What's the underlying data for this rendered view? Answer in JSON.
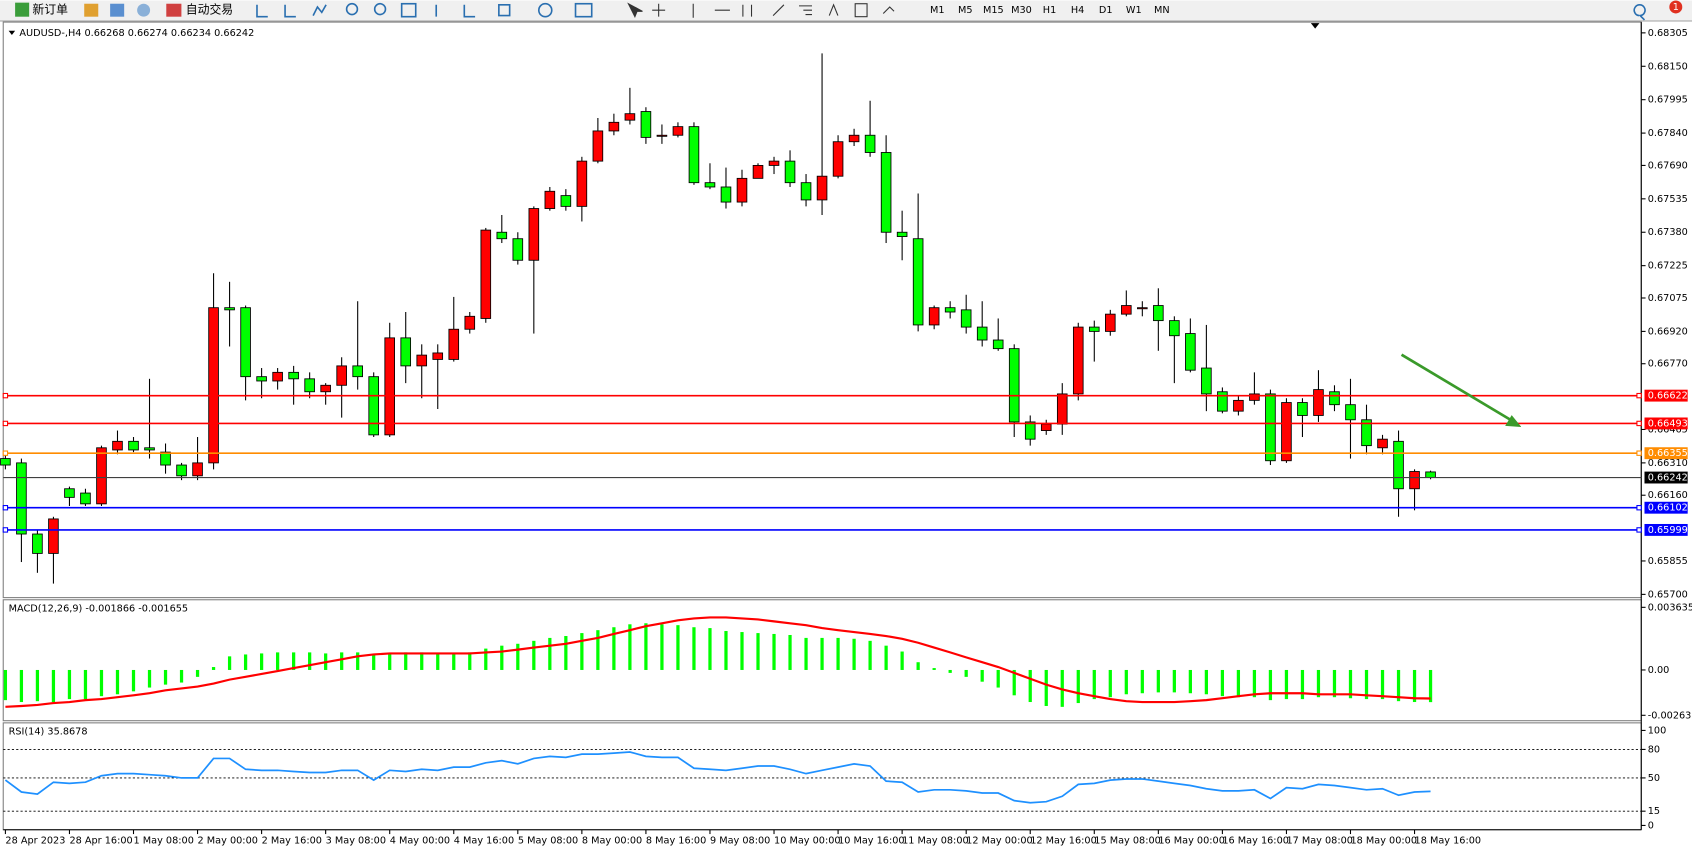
{
  "toolbar": {
    "buttons": [
      "新订单",
      "自动交易"
    ],
    "timeframes": [
      "M1",
      "M5",
      "M15",
      "M30",
      "H1",
      "H4",
      "D1",
      "W1",
      "MN"
    ],
    "badge": "1"
  },
  "chart_data": [
    {
      "type": "candlestick",
      "title": "AUDUSD-,H4 0.66268 0.66274 0.66234 0.66242",
      "categories": [
        "28 Apr 2023",
        null,
        null,
        null,
        "28 Apr 16:00",
        null,
        null,
        null,
        "1 May 08:00",
        null,
        null,
        null,
        "2 May 00:00",
        null,
        null,
        null,
        "2 May 16:00",
        null,
        null,
        null,
        "3 May 08:00",
        null,
        null,
        null,
        "4 May 00:00",
        null,
        null,
        null,
        "4 May 16:00",
        null,
        null,
        null,
        "5 May 08:00",
        null,
        null,
        null,
        "8 May 00:00",
        null,
        null,
        null,
        "8 May 16:00",
        null,
        null,
        null,
        "9 May 08:00",
        null,
        null,
        null,
        "10 May 00:00",
        null,
        null,
        null,
        "10 May 16:00",
        null,
        null,
        null,
        "11 May 08:00",
        null,
        null,
        null,
        "12 May 00:00",
        null,
        null,
        null,
        "12 May 16:00",
        null,
        null,
        null,
        "15 May 08:00",
        null,
        null,
        null,
        "16 May 00:00",
        null,
        null,
        null,
        "16 May 16:00",
        null,
        null,
        null,
        "17 May 08:00",
        null,
        null,
        null,
        "18 May 00:00",
        null,
        null,
        null,
        "18 May 16:00",
        null
      ],
      "open": [
        0.6633,
        0.6631,
        0.6598,
        0.6589,
        0.6619,
        0.6617,
        0.6612,
        0.6637,
        0.6641,
        0.6638,
        0.6636,
        0.663,
        0.6625,
        0.6631,
        0.6703,
        0.6703,
        0.6671,
        0.6669,
        0.6673,
        0.667,
        0.6664,
        0.6667,
        0.6676,
        0.6671,
        0.6644,
        0.6689,
        0.6676,
        0.6679,
        0.6679,
        0.6693,
        0.6698,
        0.6738,
        0.6735,
        0.6725,
        0.6749,
        0.6755,
        0.675,
        0.6771,
        0.6785,
        0.679,
        0.6794,
        0.6783,
        0.6783,
        0.6787,
        0.6761,
        0.6759,
        0.6752,
        0.6763,
        0.6769,
        0.6771,
        0.6761,
        0.6753,
        0.6764,
        0.678,
        0.6783,
        0.6775,
        0.6738,
        0.6735,
        0.6695,
        0.6703,
        0.6702,
        0.6694,
        0.6688,
        0.6684,
        0.665,
        0.6646,
        0.6649,
        0.6663,
        0.6694,
        0.6692,
        0.67,
        0.6703,
        0.6704,
        0.6697,
        0.6691,
        0.6675,
        0.6664,
        0.6655,
        0.666,
        0.6663,
        0.6632,
        0.6659,
        0.6653,
        0.6664,
        0.6658,
        0.6651,
        0.6638,
        0.6641,
        0.6619,
        0.66268
      ],
      "high": [
        0.6635,
        0.6633,
        0.66,
        0.6606,
        0.662,
        0.6619,
        0.6639,
        0.6646,
        0.6643,
        0.667,
        0.664,
        0.6631,
        0.6643,
        0.6719,
        0.6715,
        0.6704,
        0.6675,
        0.6675,
        0.6676,
        0.6673,
        0.6668,
        0.668,
        0.6706,
        0.6673,
        0.6696,
        0.6701,
        0.6686,
        0.6686,
        0.6708,
        0.6701,
        0.674,
        0.6746,
        0.6738,
        0.675,
        0.6759,
        0.6758,
        0.6773,
        0.6791,
        0.6793,
        0.6805,
        0.6796,
        0.6788,
        0.6789,
        0.6789,
        0.677,
        0.6768,
        0.6767,
        0.677,
        0.6773,
        0.6776,
        0.6765,
        0.6821,
        0.6783,
        0.6786,
        0.6799,
        0.6783,
        0.6748,
        0.6756,
        0.6704,
        0.6706,
        0.6709,
        0.6706,
        0.6698,
        0.6686,
        0.6653,
        0.6651,
        0.6668,
        0.6696,
        0.6697,
        0.6702,
        0.6711,
        0.6706,
        0.6712,
        0.6699,
        0.6698,
        0.6695,
        0.6666,
        0.6662,
        0.6673,
        0.6665,
        0.6661,
        0.6661,
        0.6674,
        0.6667,
        0.667,
        0.6658,
        0.6644,
        0.6646,
        0.6628,
        0.66274
      ],
      "low": [
        0.6628,
        0.6585,
        0.658,
        0.6575,
        0.6611,
        0.6611,
        0.6611,
        0.6635,
        0.6636,
        0.6633,
        0.6626,
        0.6623,
        0.6623,
        0.6628,
        0.6685,
        0.666,
        0.6661,
        0.6665,
        0.6658,
        0.6661,
        0.6658,
        0.6652,
        0.6665,
        0.6643,
        0.6643,
        0.6668,
        0.6661,
        0.6656,
        0.6678,
        0.6691,
        0.6696,
        0.6733,
        0.6723,
        0.6691,
        0.6748,
        0.6748,
        0.6743,
        0.677,
        0.6783,
        0.6788,
        0.6779,
        0.6779,
        0.6782,
        0.676,
        0.6758,
        0.6749,
        0.675,
        0.6763,
        0.6765,
        0.6759,
        0.675,
        0.6746,
        0.6763,
        0.6778,
        0.6773,
        0.6733,
        0.6725,
        0.6692,
        0.6693,
        0.6698,
        0.6691,
        0.6685,
        0.6683,
        0.6643,
        0.6639,
        0.6644,
        0.6644,
        0.666,
        0.6678,
        0.669,
        0.6699,
        0.6699,
        0.6683,
        0.6668,
        0.6673,
        0.6655,
        0.6654,
        0.6653,
        0.6658,
        0.663,
        0.6631,
        0.6643,
        0.665,
        0.6655,
        0.6633,
        0.6635,
        0.6635,
        0.6606,
        0.6609,
        0.66234
      ],
      "close": [
        0.663,
        0.6598,
        0.6589,
        0.6605,
        0.6615,
        0.6612,
        0.6638,
        0.6641,
        0.6637,
        0.6637,
        0.663,
        0.6625,
        0.6631,
        0.6703,
        0.6702,
        0.6671,
        0.6669,
        0.6673,
        0.667,
        0.6664,
        0.6667,
        0.6676,
        0.6671,
        0.6644,
        0.6689,
        0.6676,
        0.6681,
        0.6682,
        0.6693,
        0.6699,
        0.6739,
        0.6735,
        0.6725,
        0.6749,
        0.6757,
        0.675,
        0.6771,
        0.6785,
        0.6789,
        0.6793,
        0.6782,
        0.6783,
        0.6787,
        0.6761,
        0.6759,
        0.6752,
        0.6763,
        0.6769,
        0.6771,
        0.6761,
        0.6753,
        0.6764,
        0.678,
        0.6783,
        0.6775,
        0.6738,
        0.6736,
        0.6695,
        0.6703,
        0.6701,
        0.6694,
        0.6688,
        0.6684,
        0.665,
        0.6642,
        0.6649,
        0.6663,
        0.6694,
        0.6692,
        0.67,
        0.6704,
        0.6703,
        0.6697,
        0.669,
        0.6674,
        0.6663,
        0.6655,
        0.666,
        0.6663,
        0.6632,
        0.6659,
        0.6653,
        0.6665,
        0.6658,
        0.6651,
        0.6639,
        0.6642,
        0.6619,
        0.6627,
        0.66242
      ],
      "up_color": "#ff0000",
      "down_color": "#00ff00",
      "ylim": [
        0.65685,
        0.68355
      ],
      "yticks": [
        0.68305,
        {
          "value": 0.6815,
          "label": "0.68150"
        },
        0.67995,
        {
          "value": 0.6784,
          "label": "0.67840"
        },
        {
          "value": 0.6769,
          "label": "0.67690"
        },
        0.67535,
        {
          "value": 0.6738,
          "label": "0.67380"
        },
        0.67225,
        0.67075,
        {
          "value": 0.6692,
          "label": "0.66920"
        },
        {
          "value": 0.6677,
          "label": "0.66770"
        },
        0.66465,
        {
          "value": 0.6631,
          "label": "0.66310"
        },
        {
          "value": 0.6616,
          "label": "0.66160"
        },
        0.65855,
        {
          "value": 0.657,
          "label": "0.65700"
        }
      ],
      "levels": [
        {
          "value": 0.66622,
          "color": "#ff0000"
        },
        {
          "value": 0.66493,
          "color": "#ff0000"
        },
        {
          "value": 0.66355,
          "color": "#ff8c00"
        },
        {
          "value": 0.66242,
          "color": "#000000"
        },
        {
          "value": 0.66102,
          "color": "#0000ff"
        },
        {
          "value": 0.65999,
          "color": "#0000ff"
        }
      ]
    },
    {
      "type": "macd",
      "title": "MACD(12,26,9) -0.001866 -0.001655",
      "histogram": {
        "color": "#00ff00",
        "values": [
          -0.00175,
          -0.00186,
          -0.00181,
          -0.00186,
          -0.00169,
          -0.00169,
          -0.00152,
          -0.00141,
          -0.00124,
          -0.00102,
          -0.00085,
          -0.00073,
          -0.0004,
          0.00017,
          0.00079,
          0.0009,
          0.00096,
          0.00102,
          0.00102,
          0.00102,
          0.00096,
          0.00102,
          0.00102,
          0.0009,
          0.00096,
          0.00102,
          0.00102,
          0.00096,
          0.00096,
          0.00102,
          0.00124,
          0.00141,
          0.00152,
          0.00169,
          0.00186,
          0.00197,
          0.00214,
          0.00231,
          0.00248,
          0.00265,
          0.00271,
          0.00265,
          0.0026,
          0.00248,
          0.00243,
          0.00226,
          0.0022,
          0.00214,
          0.00209,
          0.00203,
          0.00186,
          0.00186,
          0.00186,
          0.00181,
          0.00169,
          0.00141,
          0.00107,
          0.00045,
          0.00011,
          -0.00017,
          -0.0004,
          -0.00068,
          -0.00102,
          -0.00147,
          -0.00186,
          -0.00209,
          -0.00214,
          -0.00192,
          -0.00169,
          -0.00158,
          -0.00141,
          -0.00135,
          -0.0013,
          -0.0013,
          -0.00135,
          -0.00141,
          -0.00152,
          -0.00158,
          -0.00158,
          -0.00175,
          -0.00169,
          -0.00169,
          -0.00158,
          -0.00158,
          -0.00164,
          -0.00169,
          -0.00169,
          -0.00181,
          -0.00186,
          -0.001866
        ]
      },
      "signal": {
        "color": "#ff0000",
        "values": [
          -0.00214,
          -0.00209,
          -0.00203,
          -0.00192,
          -0.00186,
          -0.00175,
          -0.00169,
          -0.00158,
          -0.00147,
          -0.00135,
          -0.00118,
          -0.00107,
          -0.00096,
          -0.00079,
          -0.00056,
          -0.0004,
          -0.00023,
          -6e-05,
          0.00011,
          0.00028,
          0.00045,
          0.00062,
          0.00079,
          0.0009,
          0.00096,
          0.00096,
          0.00096,
          0.00096,
          0.00096,
          0.00096,
          0.00102,
          0.00107,
          0.00118,
          0.0013,
          0.00141,
          0.00152,
          0.00169,
          0.00186,
          0.00209,
          0.00231,
          0.00254,
          0.00271,
          0.00288,
          0.00299,
          0.00305,
          0.00305,
          0.00299,
          0.00293,
          0.00282,
          0.00271,
          0.0026,
          0.00243,
          0.00231,
          0.0022,
          0.00209,
          0.00197,
          0.00181,
          0.00158,
          0.0013,
          0.00102,
          0.00073,
          0.00045,
          0.00017,
          -0.00017,
          -0.00051,
          -0.00085,
          -0.00113,
          -0.00135,
          -0.00152,
          -0.00169,
          -0.00181,
          -0.00186,
          -0.00186,
          -0.00186,
          -0.00181,
          -0.00175,
          -0.00164,
          -0.00152,
          -0.00141,
          -0.00135,
          -0.00135,
          -0.00135,
          -0.00141,
          -0.00141,
          -0.00141,
          -0.00147,
          -0.00152,
          -0.00158,
          -0.00164,
          -0.001655
        ]
      },
      "ylim": [
        -0.00263,
        0.003635
      ],
      "yticks": [
        0.003635,
        {
          "value": 0,
          "label": "0.00"
        },
        -0.00263
      ]
    },
    {
      "type": "line",
      "title": "RSI(14) 35.8678",
      "color": "#1e90ff",
      "values": [
        47.7,
        35.2,
        33.0,
        45.5,
        44.3,
        45.5,
        52.3,
        54.5,
        54.5,
        53.4,
        52.3,
        50.0,
        50.0,
        70.5,
        70.5,
        59.1,
        58.0,
        58.0,
        56.8,
        55.7,
        55.7,
        58.0,
        58.0,
        47.7,
        58.0,
        56.8,
        59.1,
        58.0,
        61.4,
        61.4,
        65.9,
        68.2,
        64.8,
        70.5,
        72.7,
        71.6,
        75.0,
        75.0,
        76.1,
        77.3,
        72.7,
        71.6,
        71.6,
        60.2,
        59.1,
        58.0,
        60.2,
        62.5,
        62.5,
        59.1,
        54.5,
        58.0,
        61.4,
        64.8,
        62.5,
        46.6,
        45.5,
        35.2,
        37.5,
        37.5,
        36.4,
        34.1,
        34.1,
        26.1,
        23.9,
        25.0,
        30.7,
        43.2,
        44.3,
        47.7,
        48.9,
        48.9,
        46.6,
        44.3,
        42.0,
        38.6,
        36.4,
        36.4,
        37.5,
        28.4,
        39.8,
        38.6,
        43.2,
        42.0,
        39.8,
        37.5,
        38.6,
        31.8,
        35.2,
        35.8678
      ],
      "ylim": [
        0,
        100
      ],
      "yticks": [
        100,
        80,
        50,
        15,
        0
      ],
      "levels": [
        80,
        50,
        15
      ]
    }
  ]
}
